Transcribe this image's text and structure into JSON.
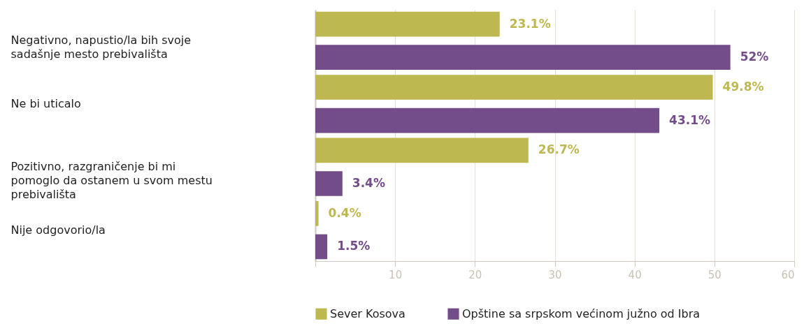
{
  "chart_data": {
    "type": "bar",
    "orientation": "horizontal",
    "categories": [
      "Negativno, napustio/la bih svoje sadašnje mesto prebivališta",
      "Ne bi uticalo",
      "Pozitivno, razgraničenje bi mi pomoglo da ostanem u svom mestu prebivališta",
      "Nije odgovorio/la"
    ],
    "series": [
      {
        "name": "Sever Kosova",
        "color": "#bdb84f",
        "values": [
          23.1,
          49.8,
          26.7,
          0.4
        ],
        "value_labels": [
          "23.1%",
          "49.8%",
          "26.7%",
          "0.4%"
        ]
      },
      {
        "name": "Opštine sa srpskom većinom južno od Ibra",
        "color": "#734c8a",
        "values": [
          52,
          43.1,
          3.4,
          1.5
        ],
        "value_labels": [
          "52%",
          "43.1%",
          "3.4%",
          "1.5%"
        ]
      }
    ],
    "xlim": [
      0,
      60
    ],
    "xticks": [
      {
        "value": 0,
        "label": null
      },
      10,
      20,
      30,
      40,
      50,
      60
    ],
    "grid": "x",
    "legend": "bottom"
  }
}
